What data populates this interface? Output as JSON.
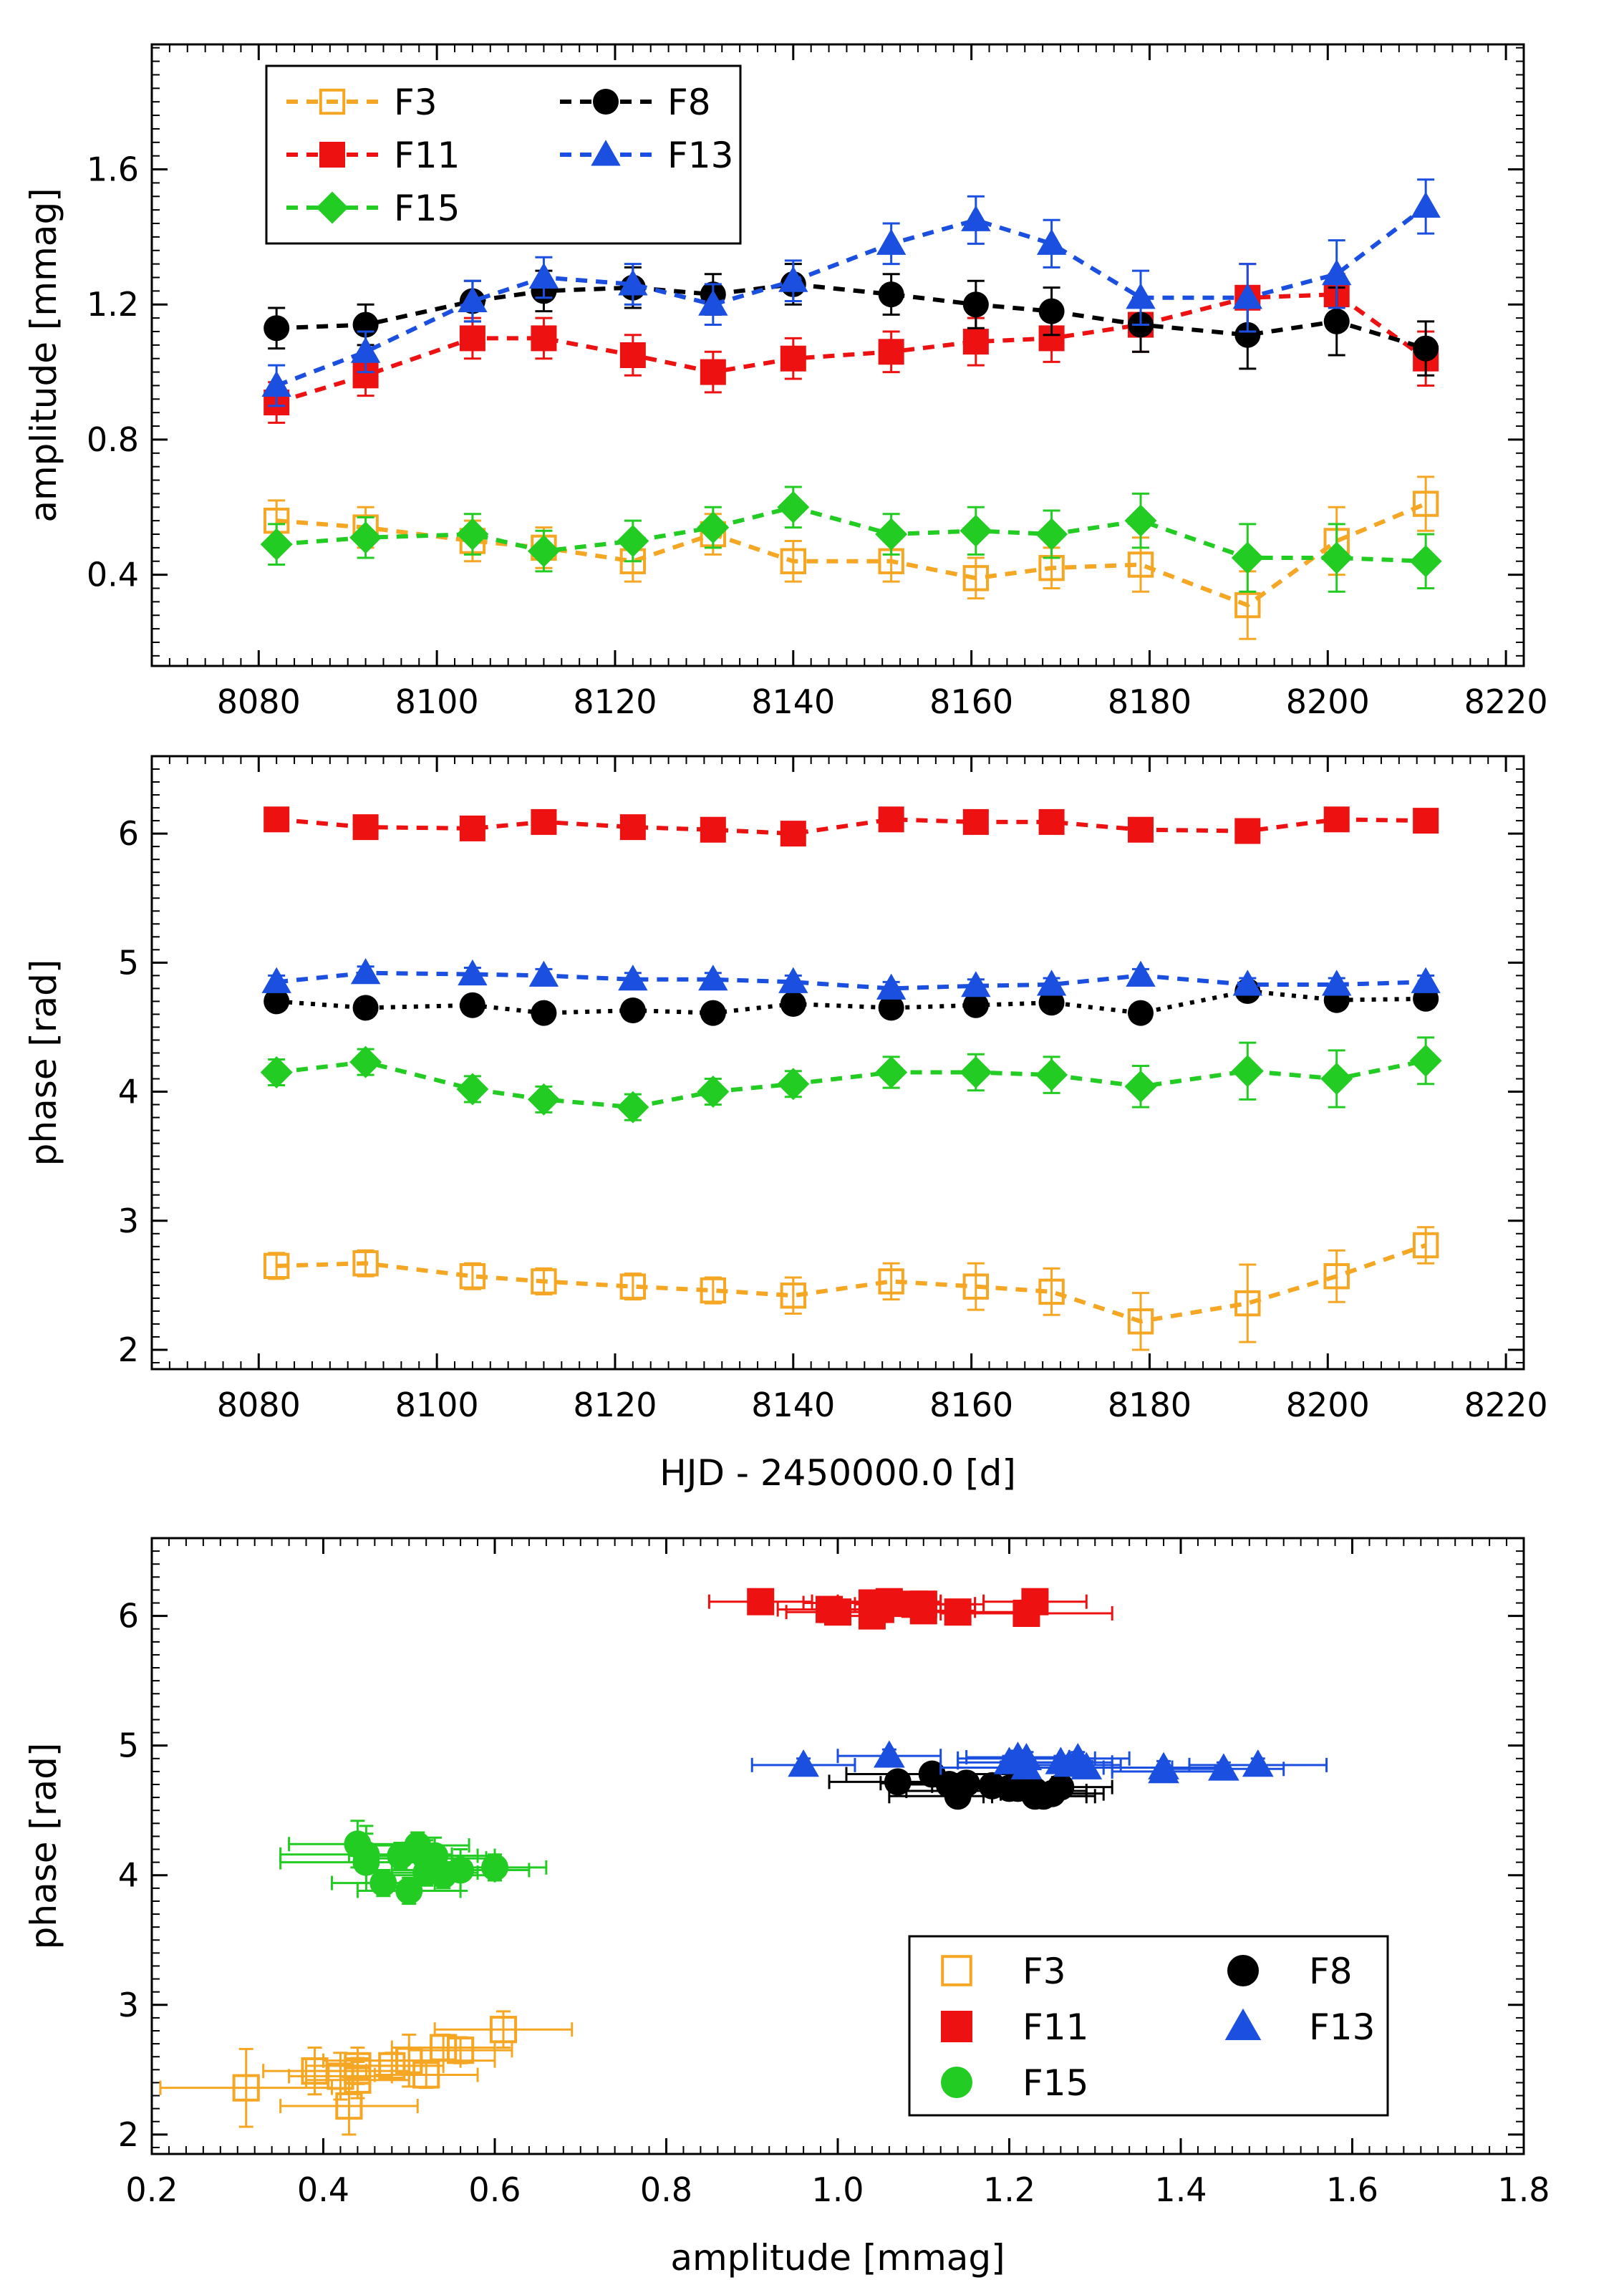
{
  "chart_data": [
    {
      "type": "line",
      "panel": "amplitude-vs-time",
      "title": "",
      "xlabel": "",
      "ylabel": "amplitude [mmag]",
      "xlim": [
        8068,
        8222
      ],
      "ylim": [
        0.13,
        1.97
      ],
      "xticks": [
        8080,
        8100,
        8120,
        8140,
        8160,
        8180,
        8200,
        8220
      ],
      "yticks": [
        0.4,
        0.8,
        1.2,
        1.6
      ],
      "x": [
        8082,
        8092,
        8104,
        8112,
        8122,
        8131,
        8140,
        8151,
        8160.5,
        8169,
        8179,
        8191,
        8201,
        8211
      ],
      "legend_position": "top-left",
      "series": [
        {
          "name": "F3",
          "color": "#f5a623",
          "marker": "open-square",
          "line": "dashed",
          "values": [
            0.56,
            0.54,
            0.5,
            0.48,
            0.44,
            0.52,
            0.44,
            0.44,
            0.39,
            0.42,
            0.43,
            0.31,
            0.5,
            0.61
          ],
          "errors": [
            0.06,
            0.06,
            0.06,
            0.06,
            0.06,
            0.06,
            0.06,
            0.06,
            0.06,
            0.06,
            0.08,
            0.1,
            0.1,
            0.08
          ]
        },
        {
          "name": "F8",
          "color": "#000000",
          "marker": "filled-circle",
          "line": "dashed",
          "values": [
            1.13,
            1.14,
            1.21,
            1.24,
            1.25,
            1.23,
            1.26,
            1.23,
            1.2,
            1.18,
            1.14,
            1.11,
            1.15,
            1.07
          ],
          "errors": [
            0.06,
            0.06,
            0.06,
            0.06,
            0.06,
            0.06,
            0.06,
            0.06,
            0.07,
            0.07,
            0.08,
            0.1,
            0.1,
            0.08
          ]
        },
        {
          "name": "F11",
          "color": "#ee1111",
          "marker": "filled-square",
          "line": "dashed",
          "values": [
            0.91,
            0.99,
            1.1,
            1.1,
            1.05,
            1.0,
            1.04,
            1.06,
            1.09,
            1.1,
            1.14,
            1.22,
            1.23,
            1.04
          ],
          "errors": [
            0.06,
            0.06,
            0.06,
            0.06,
            0.06,
            0.06,
            0.06,
            0.06,
            0.07,
            0.07,
            0.08,
            0.1,
            0.06,
            0.08
          ]
        },
        {
          "name": "F13",
          "color": "#1a4fe0",
          "marker": "filled-triangle",
          "line": "dashed",
          "values": [
            0.96,
            1.06,
            1.21,
            1.28,
            1.26,
            1.2,
            1.27,
            1.38,
            1.45,
            1.38,
            1.22,
            1.22,
            1.29,
            1.49
          ],
          "errors": [
            0.06,
            0.06,
            0.06,
            0.06,
            0.06,
            0.06,
            0.06,
            0.06,
            0.07,
            0.07,
            0.08,
            0.1,
            0.1,
            0.08
          ]
        },
        {
          "name": "F15",
          "color": "#22cc22",
          "marker": "filled-diamond",
          "line": "dashed",
          "values": [
            0.49,
            0.51,
            0.52,
            0.47,
            0.5,
            0.54,
            0.6,
            0.52,
            0.53,
            0.52,
            0.56,
            0.45,
            0.45,
            0.44
          ],
          "errors": [
            0.06,
            0.06,
            0.06,
            0.06,
            0.06,
            0.06,
            0.06,
            0.06,
            0.07,
            0.07,
            0.08,
            0.1,
            0.1,
            0.08
          ]
        }
      ]
    },
    {
      "type": "line",
      "panel": "phase-vs-time",
      "title": "",
      "xlabel": "HJD - 2450000.0 [d]",
      "ylabel": "phase [rad]",
      "xlim": [
        8068,
        8222
      ],
      "ylim": [
        1.85,
        6.6
      ],
      "xticks": [
        8080,
        8100,
        8120,
        8140,
        8160,
        8180,
        8200,
        8220
      ],
      "yticks": [
        2,
        3,
        4,
        5,
        6
      ],
      "x": [
        8082,
        8092,
        8104,
        8112,
        8122,
        8131,
        8140,
        8151,
        8160.5,
        8169,
        8179,
        8191,
        8201,
        8211
      ],
      "series": [
        {
          "name": "F3",
          "color": "#f5a623",
          "marker": "open-square",
          "line": "dashed",
          "values": [
            2.65,
            2.67,
            2.57,
            2.53,
            2.49,
            2.46,
            2.42,
            2.53,
            2.49,
            2.45,
            2.22,
            2.36,
            2.57,
            2.81
          ],
          "errors": [
            0.1,
            0.1,
            0.1,
            0.1,
            0.1,
            0.1,
            0.14,
            0.14,
            0.18,
            0.18,
            0.22,
            0.3,
            0.2,
            0.14
          ]
        },
        {
          "name": "F8",
          "color": "#000000",
          "marker": "filled-circle",
          "line": "dotted",
          "values": [
            4.7,
            4.65,
            4.67,
            4.61,
            4.63,
            4.61,
            4.68,
            4.65,
            4.67,
            4.69,
            4.61,
            4.78,
            4.71,
            4.72
          ],
          "errors": [
            0.05,
            0.05,
            0.05,
            0.05,
            0.05,
            0.05,
            0.05,
            0.05,
            0.05,
            0.05,
            0.05,
            0.05,
            0.05,
            0.05
          ]
        },
        {
          "name": "F11",
          "color": "#ee1111",
          "marker": "filled-square",
          "line": "dashed",
          "values": [
            6.11,
            6.05,
            6.04,
            6.09,
            6.05,
            6.03,
            6.0,
            6.11,
            6.09,
            6.09,
            6.03,
            6.02,
            6.11,
            6.1
          ],
          "errors": [
            0.05,
            0.05,
            0.05,
            0.05,
            0.05,
            0.05,
            0.05,
            0.05,
            0.05,
            0.05,
            0.05,
            0.05,
            0.05,
            0.05
          ]
        },
        {
          "name": "F13",
          "color": "#1a4fe0",
          "marker": "filled-triangle",
          "line": "dashed",
          "values": [
            4.85,
            4.92,
            4.91,
            4.9,
            4.87,
            4.87,
            4.85,
            4.8,
            4.82,
            4.83,
            4.9,
            4.83,
            4.83,
            4.85
          ],
          "errors": [
            0.05,
            0.05,
            0.05,
            0.05,
            0.05,
            0.05,
            0.05,
            0.05,
            0.05,
            0.05,
            0.05,
            0.05,
            0.05,
            0.05
          ]
        },
        {
          "name": "F15",
          "color": "#22cc22",
          "marker": "filled-diamond",
          "line": "dashed",
          "values": [
            4.15,
            4.23,
            4.02,
            3.94,
            3.88,
            4.0,
            4.06,
            4.15,
            4.15,
            4.13,
            4.04,
            4.16,
            4.1,
            4.24
          ],
          "errors": [
            0.1,
            0.1,
            0.1,
            0.1,
            0.1,
            0.1,
            0.1,
            0.12,
            0.14,
            0.14,
            0.16,
            0.22,
            0.22,
            0.18
          ]
        }
      ]
    },
    {
      "type": "scatter",
      "panel": "phase-vs-amplitude",
      "title": "",
      "xlabel": "amplitude [mmag]",
      "ylabel": "phase [rad]",
      "xlim": [
        0.2,
        1.8
      ],
      "ylim": [
        1.85,
        6.6
      ],
      "xticks": [
        0.2,
        0.4,
        0.6,
        0.8,
        1.0,
        1.2,
        1.4,
        1.6,
        1.8
      ],
      "xtick_labels": [
        "0.2",
        "0.4",
        "0.6",
        "0.8",
        "1.0",
        "1.2",
        "1.4",
        "1.6",
        "1.8"
      ],
      "yticks": [
        2,
        3,
        4,
        5,
        6
      ],
      "legend_position": "bottom-right",
      "series_source": "phase-vs-time values plotted against amplitude-vs-time values",
      "series": [
        {
          "name": "F3",
          "color": "#f5a623",
          "marker": "open-square"
        },
        {
          "name": "F8",
          "color": "#000000",
          "marker": "filled-circle"
        },
        {
          "name": "F11",
          "color": "#ee1111",
          "marker": "filled-square"
        },
        {
          "name": "F13",
          "color": "#1a4fe0",
          "marker": "filled-triangle"
        },
        {
          "name": "F15",
          "color": "#22cc22",
          "marker": "filled-circle"
        }
      ]
    }
  ]
}
